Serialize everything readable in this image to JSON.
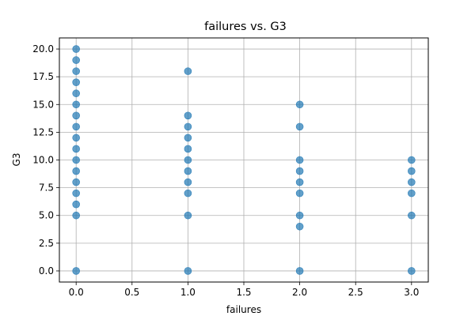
{
  "chart_data": {
    "type": "scatter",
    "title": "failures vs. G3",
    "xlabel": "failures",
    "ylabel": "G3",
    "xlim": [
      -0.15,
      3.15
    ],
    "ylim": [
      -1.0,
      21.0
    ],
    "x_ticks": [
      0.0,
      0.5,
      1.0,
      1.5,
      2.0,
      2.5,
      3.0
    ],
    "x_tick_labels": [
      "0.0",
      "0.5",
      "1.0",
      "1.5",
      "2.0",
      "2.5",
      "3.0"
    ],
    "y_ticks": [
      0.0,
      2.5,
      5.0,
      7.5,
      10.0,
      12.5,
      15.0,
      17.5,
      20.0
    ],
    "y_tick_labels": [
      "0.0",
      "2.5",
      "5.0",
      "7.5",
      "10.0",
      "12.5",
      "15.0",
      "17.5",
      "20.0"
    ],
    "grid": true,
    "point_color": "#1f77b4",
    "points": [
      {
        "x": 0,
        "y": 0
      },
      {
        "x": 0,
        "y": 5
      },
      {
        "x": 0,
        "y": 6
      },
      {
        "x": 0,
        "y": 7
      },
      {
        "x": 0,
        "y": 8
      },
      {
        "x": 0,
        "y": 9
      },
      {
        "x": 0,
        "y": 10
      },
      {
        "x": 0,
        "y": 11
      },
      {
        "x": 0,
        "y": 12
      },
      {
        "x": 0,
        "y": 13
      },
      {
        "x": 0,
        "y": 14
      },
      {
        "x": 0,
        "y": 15
      },
      {
        "x": 0,
        "y": 16
      },
      {
        "x": 0,
        "y": 17
      },
      {
        "x": 0,
        "y": 18
      },
      {
        "x": 0,
        "y": 19
      },
      {
        "x": 0,
        "y": 20
      },
      {
        "x": 1,
        "y": 0
      },
      {
        "x": 1,
        "y": 5
      },
      {
        "x": 1,
        "y": 7
      },
      {
        "x": 1,
        "y": 8
      },
      {
        "x": 1,
        "y": 9
      },
      {
        "x": 1,
        "y": 10
      },
      {
        "x": 1,
        "y": 11
      },
      {
        "x": 1,
        "y": 12
      },
      {
        "x": 1,
        "y": 13
      },
      {
        "x": 1,
        "y": 14
      },
      {
        "x": 1,
        "y": 18
      },
      {
        "x": 2,
        "y": 0
      },
      {
        "x": 2,
        "y": 4
      },
      {
        "x": 2,
        "y": 5
      },
      {
        "x": 2,
        "y": 7
      },
      {
        "x": 2,
        "y": 8
      },
      {
        "x": 2,
        "y": 9
      },
      {
        "x": 2,
        "y": 10
      },
      {
        "x": 2,
        "y": 13
      },
      {
        "x": 2,
        "y": 15
      },
      {
        "x": 3,
        "y": 0
      },
      {
        "x": 3,
        "y": 5
      },
      {
        "x": 3,
        "y": 7
      },
      {
        "x": 3,
        "y": 8
      },
      {
        "x": 3,
        "y": 9
      },
      {
        "x": 3,
        "y": 10
      }
    ]
  }
}
